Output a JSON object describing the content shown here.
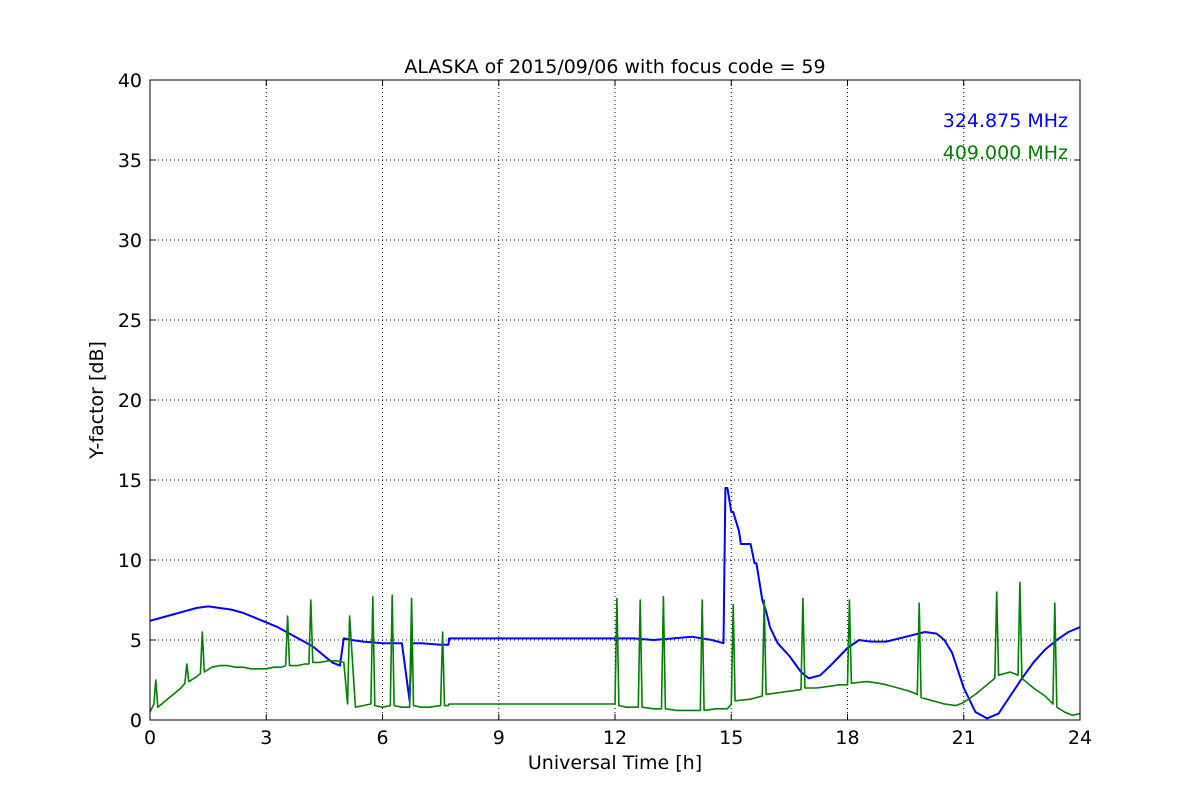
{
  "chart_data": {
    "type": "line",
    "title": "ALASKA of 2015/09/06 with focus code = 59",
    "xlabel": "Universal Time [h]",
    "ylabel": "Y-factor [dB]",
    "xlim": [
      0,
      24
    ],
    "ylim": [
      0,
      40
    ],
    "x_ticks": [
      0,
      3,
      6,
      9,
      12,
      15,
      18,
      21,
      24
    ],
    "y_ticks": [
      0,
      5,
      10,
      15,
      20,
      25,
      30,
      35,
      40
    ],
    "grid": true,
    "legend_position": "top-right",
    "series": [
      {
        "name": "324.875 MHz",
        "color": "#0000ff",
        "x": [
          0,
          0.3,
          0.6,
          0.9,
          1.2,
          1.5,
          1.8,
          2.1,
          2.4,
          2.7,
          3.0,
          3.3,
          3.6,
          3.9,
          4.2,
          4.5,
          4.7,
          4.9,
          5.0,
          5.2,
          5.5,
          6.0,
          6.5,
          6.7,
          6.75,
          6.8,
          7.0,
          7.5,
          7.7,
          7.72,
          9.0,
          10.0,
          11.0,
          11.95,
          12.0,
          12.5,
          13.0,
          13.5,
          14.0,
          14.5,
          14.8,
          14.85,
          14.9,
          15.0,
          15.05,
          15.2,
          15.25,
          15.5,
          15.6,
          15.65,
          15.8,
          15.9,
          16.0,
          16.2,
          16.5,
          16.8,
          17.0,
          17.3,
          17.6,
          18.0,
          18.3,
          18.6,
          19.0,
          19.5,
          20.0,
          20.3,
          20.5,
          20.7,
          21.0,
          21.3,
          21.6,
          21.9,
          22.2,
          22.5,
          22.8,
          23.1,
          23.4,
          23.7,
          24.0
        ],
        "values": [
          6.2,
          6.4,
          6.6,
          6.8,
          7.0,
          7.1,
          7.0,
          6.9,
          6.7,
          6.4,
          6.1,
          5.8,
          5.4,
          5.0,
          4.6,
          4.0,
          3.6,
          3.4,
          5.1,
          5.0,
          4.9,
          4.8,
          4.8,
          1.2,
          4.8,
          4.8,
          4.8,
          4.7,
          4.7,
          5.1,
          5.1,
          5.1,
          5.1,
          5.1,
          5.1,
          5.1,
          5.0,
          5.1,
          5.2,
          5.0,
          4.8,
          14.5,
          14.5,
          13.0,
          13.0,
          11.8,
          11.0,
          11.0,
          9.8,
          9.8,
          7.5,
          6.8,
          5.8,
          4.8,
          4.0,
          3.0,
          2.6,
          2.8,
          3.5,
          4.5,
          5.0,
          4.9,
          4.9,
          5.2,
          5.5,
          5.4,
          5.0,
          4.2,
          2.0,
          0.5,
          0.1,
          0.4,
          1.5,
          2.6,
          3.6,
          4.4,
          5.0,
          5.5,
          5.8
        ]
      },
      {
        "name": "409.000 MHz",
        "color": "#008000",
        "x": [
          0,
          0.1,
          0.15,
          0.2,
          0.4,
          0.6,
          0.8,
          0.9,
          0.95,
          1.0,
          1.2,
          1.3,
          1.35,
          1.4,
          1.6,
          1.8,
          2.0,
          2.2,
          2.4,
          2.6,
          2.8,
          3.0,
          3.2,
          3.4,
          3.5,
          3.55,
          3.6,
          3.8,
          4.0,
          4.1,
          4.15,
          4.2,
          4.4,
          4.6,
          4.8,
          5.0,
          5.1,
          5.15,
          5.3,
          5.5,
          5.7,
          5.75,
          5.8,
          6.0,
          6.2,
          6.25,
          6.3,
          6.5,
          6.7,
          6.75,
          6.8,
          7.0,
          7.2,
          7.5,
          7.55,
          7.6,
          7.7,
          7.72,
          9.0,
          10.0,
          11.0,
          11.95,
          12.0,
          12.05,
          12.1,
          12.3,
          12.6,
          12.65,
          12.7,
          13.0,
          13.2,
          13.25,
          13.3,
          13.6,
          14.0,
          14.2,
          14.25,
          14.3,
          14.6,
          14.9,
          15.0,
          15.05,
          15.1,
          15.5,
          15.8,
          15.85,
          15.9,
          16.2,
          16.5,
          16.8,
          16.85,
          16.9,
          17.2,
          17.5,
          17.8,
          18.0,
          18.05,
          18.1,
          18.5,
          18.8,
          19.0,
          19.3,
          19.6,
          19.8,
          19.85,
          19.9,
          20.2,
          20.5,
          20.8,
          21.0,
          21.3,
          21.6,
          21.8,
          21.85,
          21.9,
          22.2,
          22.4,
          22.45,
          22.5,
          22.8,
          23.1,
          23.3,
          23.35,
          23.4,
          23.6,
          23.8,
          24.0
        ],
        "values": [
          0.5,
          1.0,
          2.5,
          0.8,
          1.2,
          1.6,
          2.0,
          2.3,
          3.5,
          2.4,
          2.7,
          2.9,
          5.5,
          3.0,
          3.3,
          3.4,
          3.4,
          3.3,
          3.3,
          3.2,
          3.2,
          3.2,
          3.3,
          3.3,
          3.4,
          6.5,
          3.4,
          3.4,
          3.5,
          3.5,
          7.5,
          3.6,
          3.6,
          3.7,
          3.7,
          3.6,
          1.0,
          6.5,
          0.8,
          0.9,
          1.0,
          7.7,
          0.9,
          0.8,
          0.9,
          7.8,
          0.9,
          0.8,
          0.8,
          7.6,
          0.9,
          0.8,
          0.8,
          0.9,
          5.5,
          0.9,
          0.9,
          1.0,
          1.0,
          1.0,
          1.0,
          1.0,
          1.0,
          7.6,
          0.9,
          0.8,
          0.8,
          7.5,
          0.8,
          0.7,
          0.7,
          7.7,
          0.7,
          0.6,
          0.6,
          0.6,
          7.5,
          0.6,
          0.7,
          0.7,
          1.0,
          7.2,
          1.2,
          1.3,
          1.5,
          7.5,
          1.6,
          1.7,
          1.8,
          1.9,
          7.6,
          2.0,
          2.0,
          2.1,
          2.2,
          2.2,
          7.5,
          2.3,
          2.4,
          2.3,
          2.2,
          2.0,
          1.8,
          1.6,
          7.3,
          1.4,
          1.2,
          1.0,
          0.9,
          1.1,
          1.6,
          2.2,
          2.6,
          8.0,
          2.8,
          3.0,
          2.8,
          8.6,
          2.6,
          2.0,
          1.5,
          1.0,
          7.3,
          0.8,
          0.5,
          0.3,
          0.4
        ]
      }
    ]
  }
}
